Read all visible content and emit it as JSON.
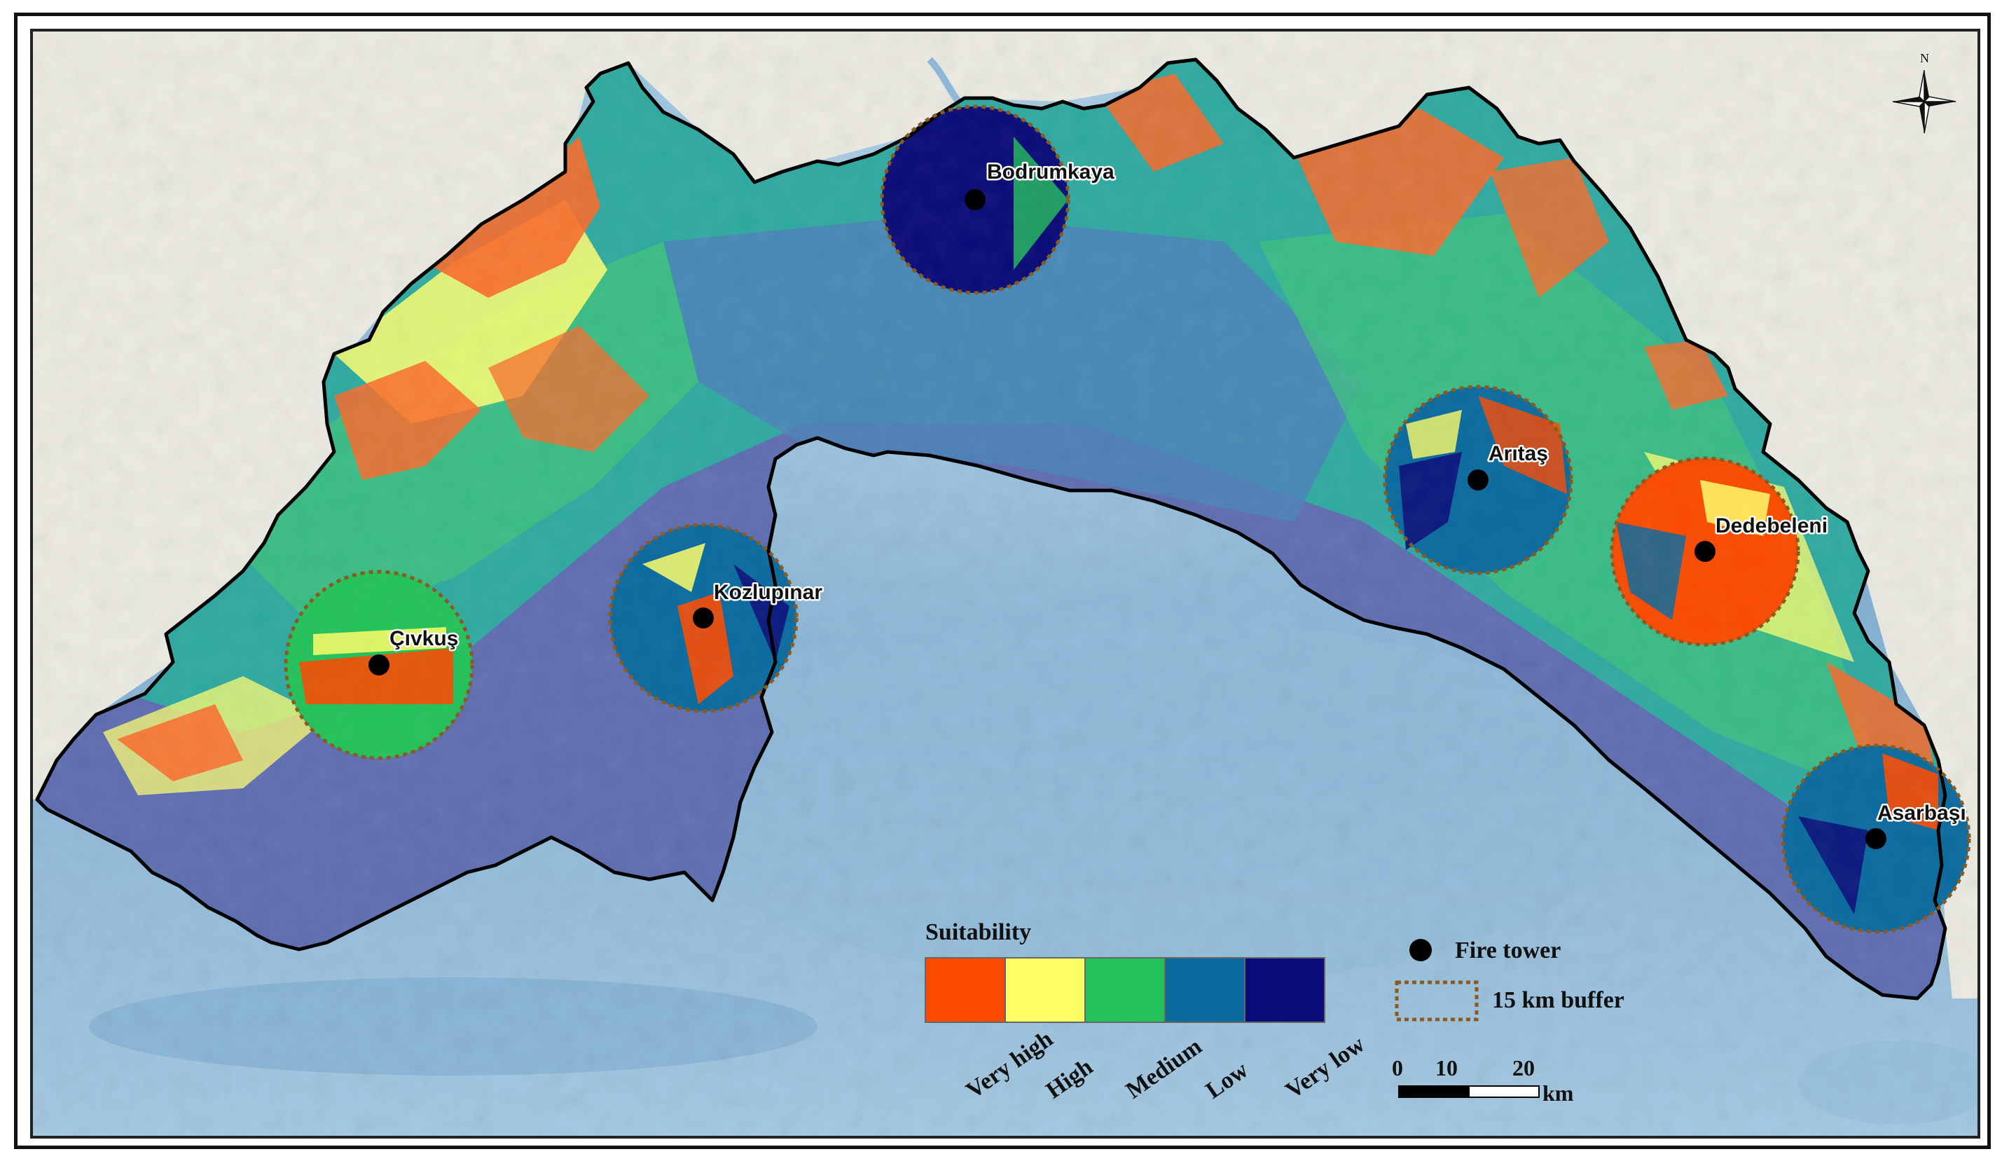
{
  "legend": {
    "title": "Suitability",
    "classes": [
      {
        "label": "Very high",
        "color": "#fa4a00"
      },
      {
        "label": "High",
        "color": "#ffff66"
      },
      {
        "label": "Medium",
        "color": "#22c15a"
      },
      {
        "label": "Low",
        "color": "#0a6a9e"
      },
      {
        "label": "Very low",
        "color": "#0a0a78"
      }
    ],
    "fire_tower_label": "Fire tower",
    "buffer_label": "15 km buffer",
    "buffer_color": "#8b5a1c"
  },
  "towers": [
    {
      "name": "Bodrumkaya"
    },
    {
      "name": "Arıtaş"
    },
    {
      "name": "Dedebeleni"
    },
    {
      "name": "Kozlupınar"
    },
    {
      "name": "Çıvkuş"
    },
    {
      "name": "Asarbaşı"
    }
  ],
  "scale_bar": {
    "ticks": [
      "0",
      "10",
      "20"
    ],
    "unit": "km"
  },
  "north_arrow": {
    "label": "N"
  },
  "colors": {
    "sea": "#8ab6d6",
    "land_outside": "#ece9e0",
    "boundary": "#000000",
    "coastal_plain": "#5e6db0"
  }
}
